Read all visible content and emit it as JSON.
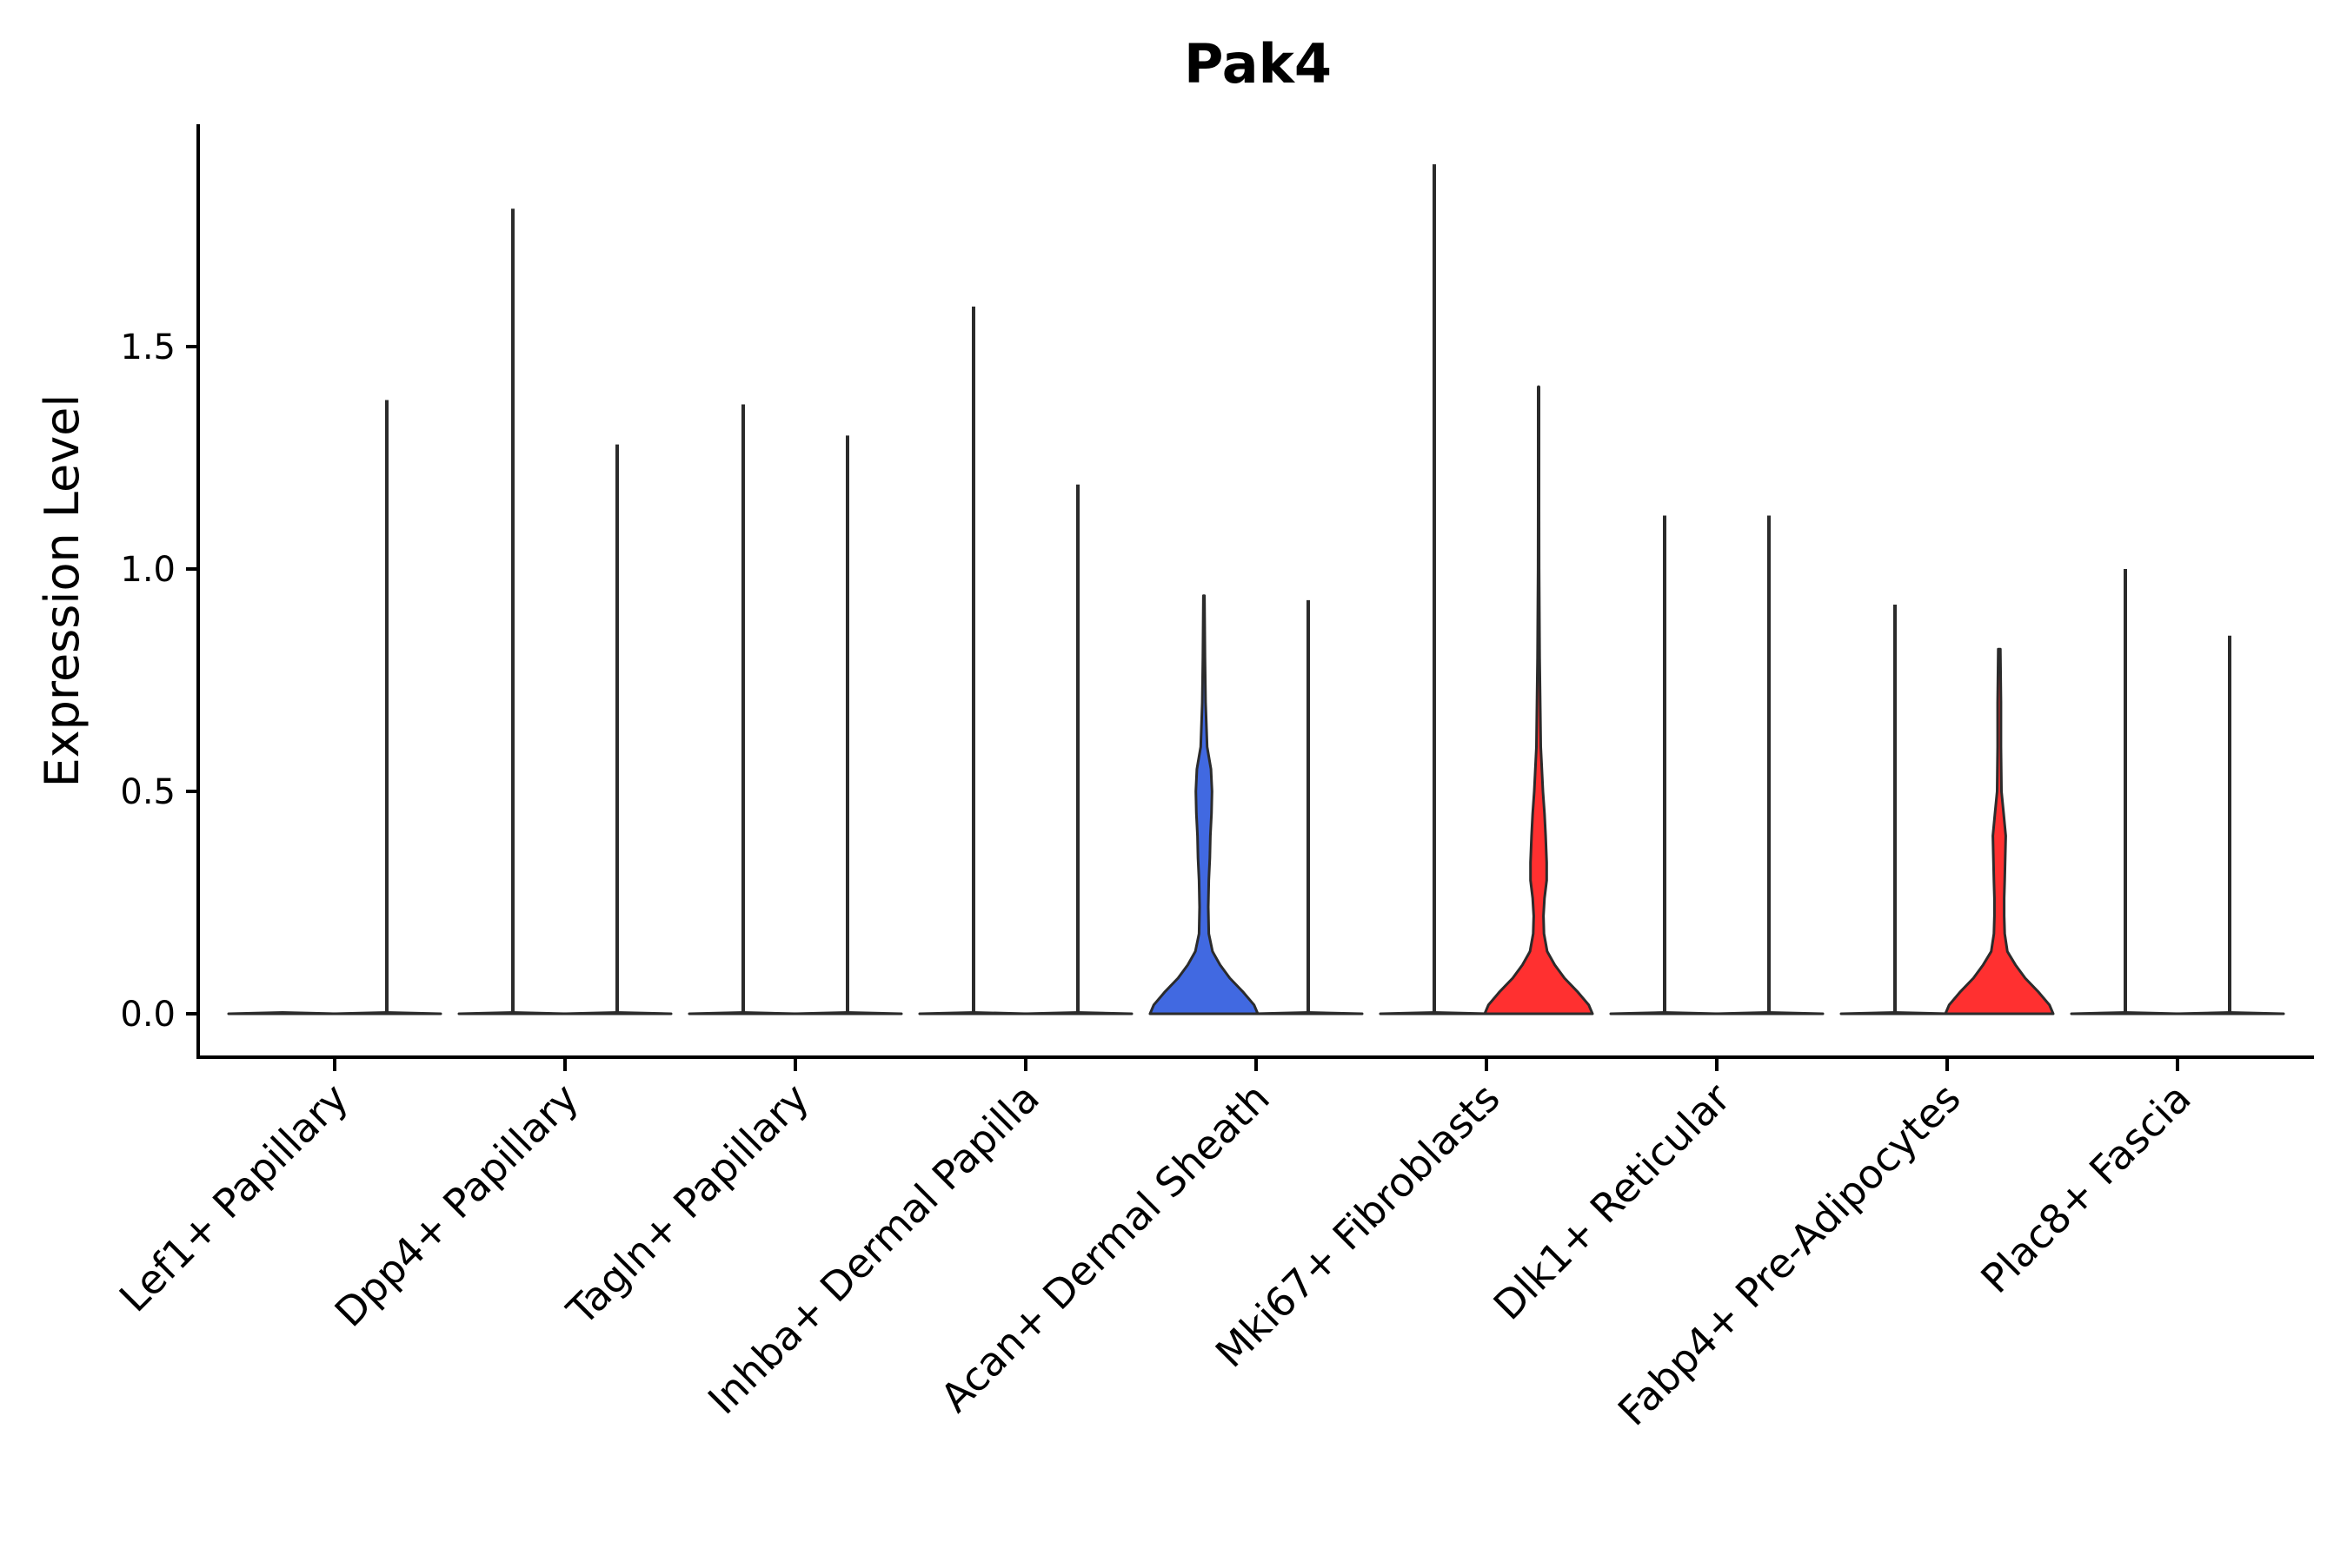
{
  "chart_data": {
    "type": "violin",
    "title": "Pak4",
    "xlabel": "",
    "ylabel": "Expression Level",
    "ylim": [
      -0.1,
      2.0
    ],
    "yticks": [
      0.0,
      0.5,
      1.0,
      1.5
    ],
    "ytick_labels": [
      "0.0",
      "0.5",
      "1.0",
      "1.5"
    ],
    "grid": false,
    "legend": "none",
    "categories": [
      "Lef1+ Papillary",
      "Dpp4+ Papillary",
      "Tagln+ Papillary",
      "Inhba+ Dermal Papilla",
      "Acan+ Dermal Sheath",
      "Mki67+ Fibroblasts",
      "Dlk1+ Reticular",
      "Fabp4+ Pre-Adipocytes",
      "Plac8+ Fascia"
    ],
    "groups": [
      {
        "category": "Lef1+ Papillary",
        "violins": [
          {
            "side": "left",
            "max": 0.0,
            "color": "#ffffff",
            "profile": [
              [
                0.0,
                1.0
              ],
              [
                0.003,
                0.0
              ]
            ]
          },
          {
            "side": "right",
            "max": 1.38,
            "color": "#ffffff",
            "profile": [
              [
                0.0,
                1.0
              ],
              [
                0.003,
                0.0
              ]
            ]
          }
        ]
      },
      {
        "category": "Dpp4+ Papillary",
        "violins": [
          {
            "side": "left",
            "max": 1.81,
            "color": "#ffffff",
            "profile": [
              [
                0.0,
                1.0
              ],
              [
                0.003,
                0.0
              ]
            ]
          },
          {
            "side": "right",
            "max": 1.28,
            "color": "#ffffff",
            "profile": [
              [
                0.0,
                1.0
              ],
              [
                0.003,
                0.0
              ]
            ]
          }
        ]
      },
      {
        "category": "Tagln+ Papillary",
        "violins": [
          {
            "side": "left",
            "max": 1.37,
            "color": "#ffffff",
            "profile": [
              [
                0.0,
                1.0
              ],
              [
                0.003,
                0.0
              ]
            ]
          },
          {
            "side": "right",
            "max": 1.3,
            "color": "#ffffff",
            "profile": [
              [
                0.0,
                1.0
              ],
              [
                0.003,
                0.0
              ]
            ]
          }
        ]
      },
      {
        "category": "Inhba+ Dermal Papilla",
        "violins": [
          {
            "side": "left",
            "max": 1.59,
            "color": "#ffffff",
            "profile": [
              [
                0.0,
                1.0
              ],
              [
                0.003,
                0.0
              ]
            ]
          },
          {
            "side": "right",
            "max": 1.19,
            "color": "#ffffff",
            "profile": [
              [
                0.0,
                1.0
              ],
              [
                0.003,
                0.0
              ]
            ]
          }
        ]
      },
      {
        "category": "Acan+ Dermal Sheath",
        "violins": [
          {
            "side": "left",
            "max": 0.94,
            "color": "#4169e1",
            "profile": [
              [
                0.0,
                1.0
              ],
              [
                0.02,
                0.93
              ],
              [
                0.05,
                0.72
              ],
              [
                0.08,
                0.48
              ],
              [
                0.11,
                0.3
              ],
              [
                0.14,
                0.16
              ],
              [
                0.18,
                0.09
              ],
              [
                0.24,
                0.08
              ],
              [
                0.3,
                0.09
              ],
              [
                0.35,
                0.11
              ],
              [
                0.4,
                0.12
              ],
              [
                0.45,
                0.14
              ],
              [
                0.5,
                0.15
              ],
              [
                0.55,
                0.13
              ],
              [
                0.6,
                0.06
              ],
              [
                0.7,
                0.03
              ],
              [
                0.8,
                0.02
              ],
              [
                0.94,
                0.01
              ]
            ]
          },
          {
            "side": "right",
            "max": 0.93,
            "color": "#ffffff",
            "profile": [
              [
                0.0,
                1.0
              ],
              [
                0.003,
                0.0
              ]
            ]
          }
        ]
      },
      {
        "category": "Mki67+ Fibroblasts",
        "violins": [
          {
            "side": "left",
            "max": 1.91,
            "color": "#ffffff",
            "profile": [
              [
                0.0,
                1.0
              ],
              [
                0.003,
                0.0
              ]
            ]
          },
          {
            "side": "right",
            "max": 1.41,
            "color": "#ff3030",
            "profile": [
              [
                0.0,
                1.0
              ],
              [
                0.02,
                0.93
              ],
              [
                0.05,
                0.72
              ],
              [
                0.08,
                0.48
              ],
              [
                0.11,
                0.3
              ],
              [
                0.14,
                0.16
              ],
              [
                0.18,
                0.1
              ],
              [
                0.22,
                0.09
              ],
              [
                0.26,
                0.11
              ],
              [
                0.3,
                0.15
              ],
              [
                0.34,
                0.15
              ],
              [
                0.4,
                0.13
              ],
              [
                0.45,
                0.11
              ],
              [
                0.5,
                0.08
              ],
              [
                0.6,
                0.04
              ],
              [
                0.8,
                0.02
              ],
              [
                1.0,
                0.01
              ],
              [
                1.41,
                0.005
              ]
            ]
          }
        ]
      },
      {
        "category": "Dlk1+ Reticular",
        "violins": [
          {
            "side": "left",
            "max": 1.12,
            "color": "#ffffff",
            "profile": [
              [
                0.0,
                1.0
              ],
              [
                0.003,
                0.0
              ]
            ]
          },
          {
            "side": "right",
            "max": 1.12,
            "color": "#ffffff",
            "profile": [
              [
                0.0,
                1.0
              ],
              [
                0.003,
                0.0
              ]
            ]
          }
        ]
      },
      {
        "category": "Fabp4+ Pre-Adipocytes",
        "violins": [
          {
            "side": "left",
            "max": 0.92,
            "color": "#ffffff",
            "profile": [
              [
                0.0,
                1.0
              ],
              [
                0.003,
                0.0
              ]
            ]
          },
          {
            "side": "right",
            "max": 0.82,
            "color": "#ff3030",
            "profile": [
              [
                0.0,
                1.0
              ],
              [
                0.02,
                0.93
              ],
              [
                0.05,
                0.72
              ],
              [
                0.08,
                0.48
              ],
              [
                0.11,
                0.3
              ],
              [
                0.14,
                0.15
              ],
              [
                0.18,
                0.1
              ],
              [
                0.22,
                0.09
              ],
              [
                0.26,
                0.09
              ],
              [
                0.3,
                0.1
              ],
              [
                0.35,
                0.11
              ],
              [
                0.4,
                0.12
              ],
              [
                0.45,
                0.08
              ],
              [
                0.5,
                0.04
              ],
              [
                0.6,
                0.03
              ],
              [
                0.7,
                0.03
              ],
              [
                0.82,
                0.02
              ]
            ]
          }
        ]
      },
      {
        "category": "Plac8+ Fascia",
        "violins": [
          {
            "side": "left",
            "max": 1.0,
            "color": "#ffffff",
            "profile": [
              [
                0.0,
                1.0
              ],
              [
                0.003,
                0.0
              ]
            ]
          },
          {
            "side": "right",
            "max": 0.85,
            "color": "#ffffff",
            "profile": [
              [
                0.0,
                1.0
              ],
              [
                0.003,
                0.0
              ]
            ]
          }
        ]
      }
    ]
  }
}
